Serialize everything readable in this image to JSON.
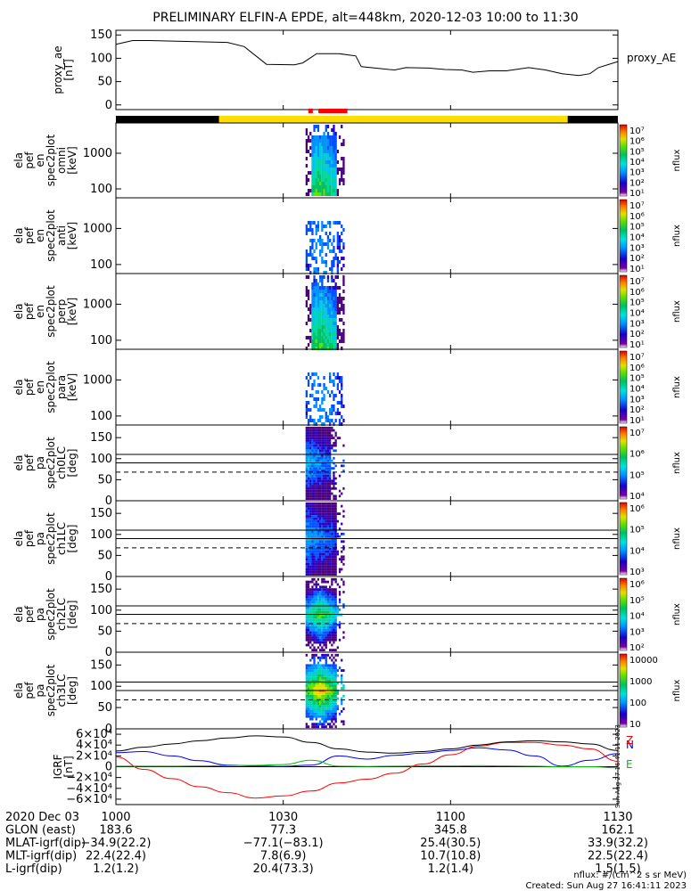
{
  "title": "PRELIMINARY ELFIN-A EPDE, alt=448km, 2020-12-03 10:00 to 11:30",
  "colors": {
    "ae": "#000000",
    "day_bar": "#ffdd00",
    "night_bar": "#000000",
    "science_zone": "#ff0000",
    "igrf_n": "#0000ff",
    "igrf_z": "#ff0000",
    "igrf_e": "#00c000",
    "igrf_total": "#000000"
  },
  "chart_data": [
    {
      "type": "line",
      "id": "proxy_ae",
      "ylabel_lines": [
        "proxy_ae",
        "[nT]"
      ],
      "legend": "proxy_AE",
      "ylim": [
        -10,
        160
      ],
      "yticks": [
        "150",
        "100",
        "50",
        "0"
      ],
      "ytick_values": [
        150,
        100,
        50,
        0
      ],
      "xlim": [
        0,
        90
      ],
      "x": [
        0,
        3,
        6,
        20,
        23,
        27,
        32,
        33.5,
        36,
        40,
        43,
        44,
        49,
        50,
        52,
        56,
        59,
        62,
        64,
        67,
        70,
        74,
        77,
        80,
        83,
        85,
        86.5,
        90
      ],
      "y": [
        130,
        138,
        138,
        134,
        125,
        87,
        86,
        90,
        110,
        110,
        105,
        82,
        76,
        75,
        80,
        79,
        76,
        75,
        70,
        73,
        73,
        80,
        75,
        67,
        63,
        67,
        80,
        93
      ]
    },
    {
      "type": "bar",
      "id": "day_night_bar",
      "segments": [
        {
          "x0": 0,
          "x1": 18.5,
          "kind": "night"
        },
        {
          "x0": 18.5,
          "x1": 81,
          "kind": "day"
        },
        {
          "x0": 81,
          "x1": 90,
          "kind": "night"
        }
      ],
      "science_zones": [
        [
          34.5,
          35.3
        ],
        [
          36.3,
          41.5
        ]
      ]
    },
    {
      "type": "heatmap",
      "id": "spec_omni",
      "ylabel_lines": [
        "ela",
        "pef",
        "en",
        "spec2plot",
        "omni",
        "[keV]"
      ],
      "yscale": "log",
      "yticks": [
        "1000",
        "100"
      ],
      "colorbar_ticks": [
        "10⁷",
        "10⁶",
        "10⁵",
        "10⁴",
        "10³",
        "10²",
        "10¹"
      ],
      "colorbar_label": "nflux",
      "data_interval": [
        34,
        41
      ]
    },
    {
      "type": "heatmap",
      "id": "spec_anti",
      "ylabel_lines": [
        "ela",
        "pef",
        "en",
        "spec2plot",
        "anti",
        "[keV]"
      ],
      "yscale": "log",
      "yticks": [
        "1000",
        "100"
      ],
      "colorbar_ticks": [
        "10⁷",
        "10⁶",
        "10⁵",
        "10⁴",
        "10³",
        "10²",
        "10¹"
      ],
      "colorbar_label": "nflux",
      "data_interval": [
        34,
        41
      ]
    },
    {
      "type": "heatmap",
      "id": "spec_perp",
      "ylabel_lines": [
        "ela",
        "pef",
        "en",
        "spec2plot",
        "perp",
        "[keV]"
      ],
      "yscale": "log",
      "yticks": [
        "1000",
        "100"
      ],
      "colorbar_ticks": [
        "10⁷",
        "10⁶",
        "10⁵",
        "10⁴",
        "10³",
        "10²",
        "10¹"
      ],
      "colorbar_label": "nflux",
      "data_interval": [
        34,
        41
      ]
    },
    {
      "type": "heatmap",
      "id": "spec_para",
      "ylabel_lines": [
        "ela",
        "pef",
        "en",
        "spec2plot",
        "para",
        "[keV]"
      ],
      "yscale": "log",
      "yticks": [
        "1000",
        "100"
      ],
      "colorbar_ticks": [
        "10⁷",
        "10⁶",
        "10⁵",
        "10⁴",
        "10³",
        "10²",
        "10¹"
      ],
      "colorbar_label": "nflux",
      "data_interval": [
        34,
        41
      ]
    },
    {
      "type": "heatmap",
      "id": "pa_ch0",
      "ylabel_lines": [
        "ela",
        "pef",
        "pa",
        "spec2plot",
        "ch0LC",
        "[deg]"
      ],
      "ylim": [
        0,
        180
      ],
      "yticks": [
        "150",
        "100",
        "50",
        "0"
      ],
      "ytick_values": [
        150,
        100,
        50,
        0
      ],
      "hlines": [
        110,
        90
      ],
      "dashed_line": 68,
      "colorbar_ticks": [
        "10⁷",
        "10⁶",
        "10⁵",
        "10⁴"
      ],
      "colorbar_label": "nflux",
      "data_interval": [
        34,
        41
      ]
    },
    {
      "type": "heatmap",
      "id": "pa_ch1",
      "ylabel_lines": [
        "ela",
        "pef",
        "pa",
        "spec2plot",
        "ch1LC",
        "[deg]"
      ],
      "ylim": [
        0,
        180
      ],
      "yticks": [
        "150",
        "100",
        "50",
        "0"
      ],
      "ytick_values": [
        150,
        100,
        50,
        0
      ],
      "hlines": [
        110,
        90
      ],
      "dashed_line": 68,
      "colorbar_ticks": [
        "10⁶",
        "10⁵",
        "10⁴",
        "10³"
      ],
      "colorbar_label": "nflux",
      "data_interval": [
        34,
        41
      ]
    },
    {
      "type": "heatmap",
      "id": "pa_ch2",
      "ylabel_lines": [
        "ela",
        "pef",
        "pa",
        "spec2plot",
        "ch2LC",
        "[deg]"
      ],
      "ylim": [
        0,
        180
      ],
      "yticks": [
        "150",
        "100",
        "50",
        "0"
      ],
      "ytick_values": [
        150,
        100,
        50,
        0
      ],
      "hlines": [
        110,
        90
      ],
      "dashed_line": 68,
      "colorbar_ticks": [
        "10⁶",
        "10⁵",
        "10⁴",
        "10³",
        "10²"
      ],
      "colorbar_label": "nflux",
      "data_interval": [
        34,
        41
      ]
    },
    {
      "type": "heatmap",
      "id": "pa_ch3",
      "ylabel_lines": [
        "ela",
        "pef",
        "pa",
        "spec2plot",
        "ch3LC",
        "[deg]"
      ],
      "ylim": [
        0,
        180
      ],
      "yticks": [
        "150",
        "100",
        "50",
        "0"
      ],
      "ytick_values": [
        150,
        100,
        50,
        0
      ],
      "hlines": [
        110,
        90
      ],
      "dashed_line": 68,
      "colorbar_ticks": [
        "10000",
        "1000",
        "100",
        "10"
      ],
      "colorbar_label": "nflux",
      "data_interval": [
        34,
        41
      ]
    },
    {
      "type": "line",
      "id": "igrf",
      "ylabel_lines": [
        "IGRF",
        "[nT]"
      ],
      "ylim": [
        -70000,
        70000
      ],
      "yticks": [
        "6×10⁴",
        "4×10⁴",
        "2×10⁴",
        "0",
        "−2×10⁴",
        "−4×10⁴",
        "−6×10⁴"
      ],
      "ytick_values": [
        60000,
        40000,
        20000,
        0,
        -20000,
        -40000,
        -60000
      ],
      "x": [
        0,
        5,
        10,
        15,
        20,
        25,
        30,
        35,
        40,
        45,
        50,
        55,
        60,
        65,
        70,
        75,
        80,
        85,
        90
      ],
      "series": [
        {
          "name": "N",
          "color": "igrf_n",
          "values": [
            26000,
            28000,
            20000,
            11000,
            3000,
            1500,
            600,
            3000,
            20000,
            14000,
            21000,
            25000,
            30000,
            35000,
            31000,
            20000,
            1000,
            12000,
            24000
          ]
        },
        {
          "name": "Z",
          "color": "igrf_z",
          "values": [
            18000,
            -5000,
            -22000,
            -37000,
            -48000,
            -58000,
            -54000,
            -45000,
            -30000,
            -23000,
            -12000,
            5000,
            22000,
            38000,
            45000,
            45000,
            40000,
            33000,
            10000
          ]
        },
        {
          "name": "E",
          "color": "igrf_e",
          "values": [
            1000,
            1000,
            1000,
            1500,
            2000,
            2500,
            4000,
            12000,
            1000,
            500,
            1000,
            1500,
            1500,
            2000,
            1500,
            1000,
            0,
            0,
            -2000
          ]
        },
        {
          "name": "",
          "color": "igrf_total",
          "values": [
            29000,
            36000,
            42000,
            48000,
            53000,
            57000,
            55000,
            45000,
            33000,
            27000,
            25000,
            28000,
            33000,
            40000,
            46000,
            48000,
            46000,
            42000,
            30000
          ]
        }
      ],
      "created_stamp": "Sun Aug 27 16:41:11 2023"
    }
  ],
  "x_ticks": [
    "1000",
    "1030",
    "1100",
    "1130"
  ],
  "x_tick_values": [
    0,
    30,
    60,
    90
  ],
  "ephemeris": {
    "rows": [
      {
        "label": "2020 Dec 03",
        "values": [
          "1000",
          "1030",
          "1100",
          "1130"
        ]
      },
      {
        "label": "GLON (east)",
        "values": [
          "183.6",
          "77.3",
          "345.8",
          "162.1"
        ]
      },
      {
        "label": "MLAT-igrf(dip)",
        "values": [
          "−34.9(22.2)",
          "−77.1(−83.1)",
          "25.4(30.5)",
          "33.9(32.2)"
        ]
      },
      {
        "label": "MLT-igrf(dip)",
        "values": [
          "22.4(22.4)",
          "7.8(6.9)",
          "10.7(10.8)",
          "22.5(22.4)"
        ]
      },
      {
        "label": "L-igrf(dip)",
        "values": [
          "1.2(1.2)",
          "20.4(73.3)",
          "1.2(1.4)",
          "1.5(1.5)"
        ]
      }
    ]
  },
  "footer": {
    "units": "nflux: #/(cm^2 s sr MeV)",
    "created": "Created: Sun Aug 27 16:41:11 2023"
  }
}
